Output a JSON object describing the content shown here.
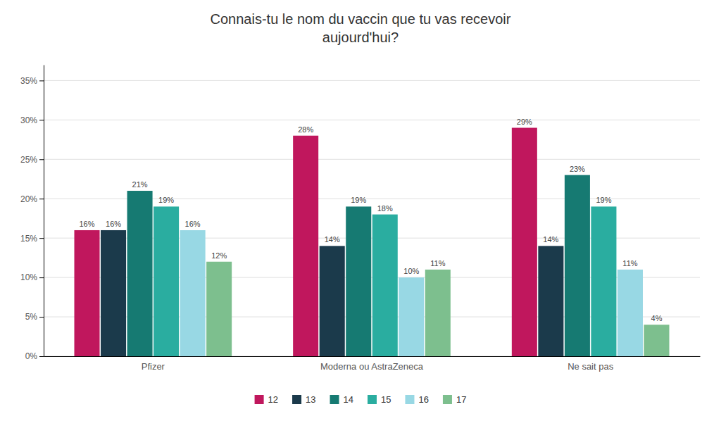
{
  "chart_data": {
    "type": "bar",
    "title": "Connais-tu le nom du vaccin que tu vas recevoir\naujourd'hui?",
    "categories": [
      "Pfizer",
      "Moderna ou AstraZeneca",
      "Ne sait pas"
    ],
    "series": [
      {
        "name": "12",
        "color": "#c0175d",
        "values": [
          16,
          28,
          29
        ],
        "value_labels": [
          "16%",
          "28%",
          "29%"
        ]
      },
      {
        "name": "13",
        "color": "#1b3a4b",
        "values": [
          16,
          14,
          14
        ],
        "value_labels": [
          "16%",
          "14%",
          "14%"
        ]
      },
      {
        "name": "14",
        "color": "#167a72",
        "values": [
          21,
          19,
          23
        ],
        "value_labels": [
          "21%",
          "19%",
          "23%"
        ]
      },
      {
        "name": "15",
        "color": "#2aada0",
        "values": [
          19,
          18,
          19
        ],
        "value_labels": [
          "19%",
          "18%",
          "19%"
        ]
      },
      {
        "name": "16",
        "color": "#98d8e4",
        "values": [
          16,
          10,
          11
        ],
        "value_labels": [
          "16%",
          "10%",
          "11%"
        ]
      },
      {
        "name": "17",
        "color": "#7dbf8e",
        "values": [
          12,
          11,
          4
        ],
        "value_labels": [
          "12%",
          "11%",
          "4%"
        ]
      }
    ],
    "ylim": [
      0,
      37
    ],
    "yticks": [
      {
        "value": 0,
        "label": "0%"
      },
      {
        "value": 5,
        "label": "5%"
      },
      {
        "value": 10,
        "label": "10%"
      },
      {
        "value": 15,
        "label": "15%"
      },
      {
        "value": 20,
        "label": "20%"
      },
      {
        "value": 25,
        "label": "25%"
      },
      {
        "value": 30,
        "label": "30%"
      },
      {
        "value": 35,
        "label": "35%"
      }
    ],
    "grid": true,
    "data_labels": true,
    "legend": "bottom"
  }
}
